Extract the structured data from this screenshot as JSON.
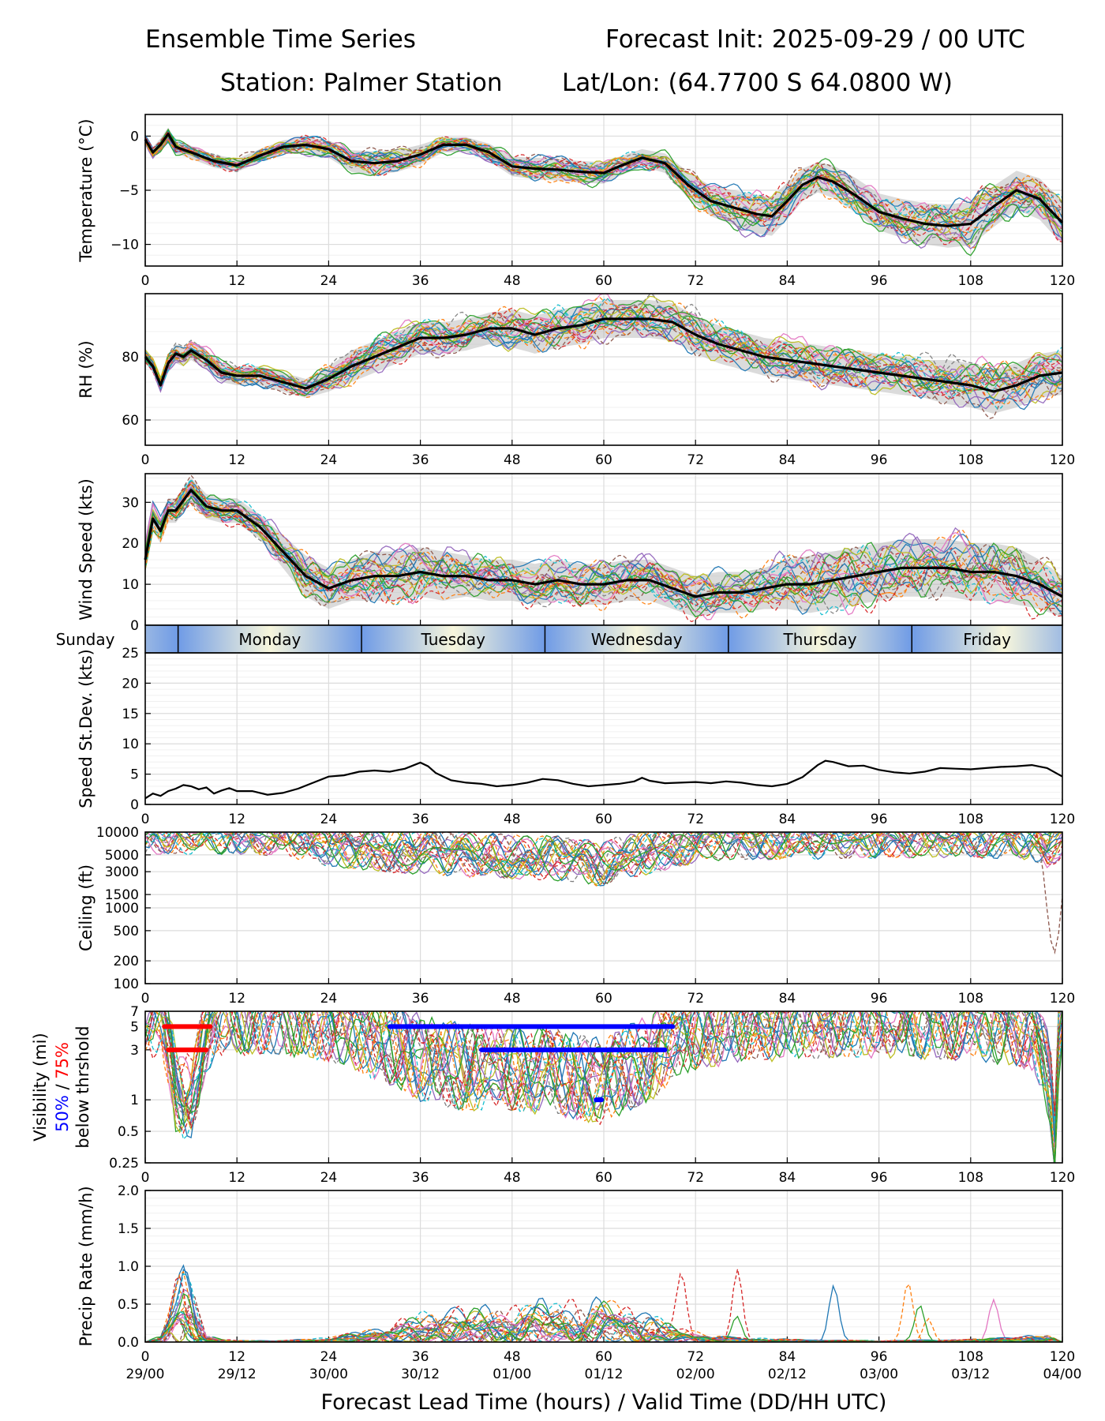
{
  "header": {
    "title_left": "Ensemble Time Series",
    "title_right": "Forecast Init: 2025-09-29 / 00 UTC",
    "station": "Station: Palmer Station",
    "latlon": "Lat/Lon: (64.7700 S 64.0800 W)"
  },
  "xaxis": {
    "ticks": [
      0,
      12,
      24,
      36,
      48,
      60,
      72,
      84,
      96,
      108,
      120
    ],
    "valid_times": [
      "29/00",
      "29/12",
      "30/00",
      "30/12",
      "01/00",
      "01/12",
      "02/00",
      "02/12",
      "03/00",
      "03/12",
      "04/00"
    ],
    "label": "Forecast Lead Time (hours) / Valid Time (DD/HH UTC)"
  },
  "day_bar": {
    "days": [
      {
        "name": "Sunday",
        "start": -24,
        "end": 4.3
      },
      {
        "name": "Monday",
        "start": 4.3,
        "end": 28.3
      },
      {
        "name": "Tuesday",
        "start": 28.3,
        "end": 52.3
      },
      {
        "name": "Wednesday",
        "start": 52.3,
        "end": 76.3
      },
      {
        "name": "Thursday",
        "start": 76.3,
        "end": 100.3
      },
      {
        "name": "Friday",
        "start": 100.3,
        "end": 124.3
      }
    ],
    "color_edge": "#6f9be6",
    "color_mid": "#f7f6dc"
  },
  "chart_data": [
    {
      "id": "temperature",
      "type": "line",
      "ylabel": "Temperature (°C)",
      "ylim": [
        -12,
        2
      ],
      "yticks": [
        0,
        -5,
        -10
      ],
      "x": [
        0,
        1,
        2,
        3,
        4,
        6,
        9,
        12,
        15,
        18,
        21,
        24,
        27,
        30,
        33,
        36,
        39,
        42,
        45,
        48,
        51,
        54,
        57,
        60,
        62,
        65,
        68,
        71,
        74,
        77,
        80,
        82,
        84,
        86,
        88,
        90,
        93,
        96,
        99,
        102,
        105,
        108,
        111,
        114,
        117,
        120
      ],
      "mean": [
        -0.3,
        -1.5,
        -0.8,
        0.2,
        -1.0,
        -1.5,
        -2.3,
        -2.7,
        -1.8,
        -1.0,
        -0.8,
        -1.2,
        -2.3,
        -2.5,
        -2.3,
        -1.7,
        -0.8,
        -0.8,
        -1.5,
        -2.8,
        -3.0,
        -3.1,
        -3.3,
        -3.4,
        -2.8,
        -2.0,
        -2.5,
        -4.5,
        -6.0,
        -6.6,
        -7.2,
        -7.4,
        -6.0,
        -4.5,
        -3.8,
        -4.2,
        -5.5,
        -7.0,
        -7.6,
        -8.1,
        -8.3,
        -8.1,
        -6.5,
        -5.0,
        -5.8,
        -8.0
      ],
      "spread": [
        0.3,
        0.5,
        0.6,
        0.6,
        0.6,
        0.6,
        0.6,
        0.6,
        0.6,
        0.6,
        0.7,
        0.8,
        1.0,
        1.1,
        1.0,
        0.9,
        0.7,
        0.7,
        0.8,
        0.9,
        1.0,
        1.0,
        1.0,
        1.0,
        0.9,
        0.8,
        0.9,
        1.2,
        1.4,
        1.6,
        1.8,
        1.8,
        1.7,
        1.5,
        1.4,
        1.5,
        1.6,
        1.7,
        1.8,
        1.9,
        2.0,
        2.0,
        1.9,
        1.8,
        1.9,
        2.0
      ],
      "members": 24
    },
    {
      "id": "rh",
      "type": "line",
      "ylabel": "RH (%)",
      "ylim": [
        52,
        100
      ],
      "yticks": [
        80,
        60
      ],
      "x": [
        0,
        1,
        2,
        3,
        4,
        5,
        6,
        8,
        10,
        12,
        15,
        18,
        21,
        24,
        27,
        30,
        33,
        36,
        39,
        42,
        45,
        48,
        51,
        54,
        57,
        60,
        63,
        66,
        69,
        72,
        75,
        78,
        81,
        84,
        87,
        90,
        93,
        96,
        99,
        102,
        105,
        108,
        111,
        114,
        117,
        120
      ],
      "mean": [
        80,
        77,
        71,
        78,
        81,
        80,
        82,
        79,
        75,
        74,
        74,
        72,
        70,
        73,
        77,
        80,
        83,
        86,
        86,
        87,
        89,
        89,
        87,
        89,
        90,
        92,
        92,
        92,
        91,
        87,
        84,
        82,
        80,
        79,
        78,
        77,
        76,
        75,
        74,
        73,
        72,
        71,
        69,
        71,
        74,
        75
      ],
      "spread": [
        2,
        2,
        2,
        3,
        3,
        3,
        3,
        3,
        3,
        3,
        3,
        3,
        3,
        4,
        5,
        5,
        5,
        5,
        5,
        5,
        5,
        6,
        6,
        6,
        6,
        6,
        6,
        6,
        6,
        6,
        6,
        6,
        6,
        6,
        6,
        6,
        6,
        6,
        6,
        6,
        7,
        7,
        7,
        7,
        7,
        7
      ],
      "members": 24
    },
    {
      "id": "wind",
      "type": "line",
      "ylabel": "Wind Speed (kts)",
      "ylim": [
        0,
        37
      ],
      "yticks": [
        0,
        10,
        20,
        30
      ],
      "x": [
        0,
        1,
        2,
        3,
        4,
        6,
        8,
        10,
        12,
        15,
        18,
        21,
        24,
        27,
        30,
        33,
        36,
        39,
        42,
        45,
        48,
        51,
        54,
        57,
        60,
        63,
        66,
        69,
        72,
        75,
        78,
        81,
        84,
        87,
        90,
        93,
        96,
        99,
        102,
        105,
        108,
        111,
        114,
        117,
        120
      ],
      "mean": [
        16,
        26,
        23,
        28,
        28,
        33,
        29,
        28,
        28,
        24,
        18,
        12,
        9,
        11,
        12,
        12,
        13,
        12,
        12,
        11,
        11,
        10,
        11,
        10,
        10,
        11,
        11,
        9,
        7,
        8,
        8,
        9,
        10,
        10,
        11,
        12,
        13,
        14,
        14,
        14,
        13,
        13,
        12,
        10,
        7
      ],
      "spread": [
        3,
        3,
        3,
        3,
        3,
        3,
        3,
        3,
        3,
        3,
        4,
        5,
        5,
        5,
        6,
        6,
        6,
        6,
        5,
        5,
        5,
        5,
        5,
        5,
        5,
        5,
        5,
        5,
        5,
        5,
        5,
        5,
        6,
        7,
        7,
        7,
        7,
        7,
        7,
        7,
        7,
        7,
        7,
        6,
        5
      ],
      "members": 24
    },
    {
      "id": "wind_sd",
      "type": "line",
      "ylabel": "Speed St.Dev. (kts)",
      "ylim": [
        0,
        25
      ],
      "yticks": [
        0,
        5,
        10,
        15,
        20,
        25
      ],
      "x": [
        0,
        1,
        2,
        3,
        4,
        5,
        6,
        7,
        8,
        9,
        10,
        11,
        12,
        14,
        16,
        18,
        20,
        22,
        24,
        26,
        28,
        30,
        32,
        34,
        35,
        36,
        37,
        38,
        40,
        42,
        44,
        46,
        48,
        50,
        52,
        54,
        56,
        58,
        60,
        62,
        64,
        65,
        66,
        68,
        70,
        72,
        74,
        76,
        78,
        80,
        82,
        84,
        86,
        88,
        89,
        90,
        92,
        94,
        96,
        98,
        100,
        102,
        104,
        106,
        108,
        110,
        112,
        114,
        116,
        118,
        120
      ],
      "values": [
        1.0,
        1.8,
        1.4,
        2.2,
        2.6,
        3.2,
        3.0,
        2.5,
        2.8,
        1.8,
        2.3,
        2.7,
        2.2,
        2.2,
        1.6,
        1.9,
        2.6,
        3.6,
        4.6,
        4.8,
        5.4,
        5.6,
        5.4,
        5.9,
        6.4,
        6.9,
        6.3,
        5.2,
        4.0,
        3.6,
        3.4,
        3.0,
        3.2,
        3.6,
        4.2,
        4.0,
        3.4,
        3.0,
        3.2,
        3.4,
        3.8,
        4.4,
        3.9,
        3.5,
        3.6,
        3.7,
        3.5,
        3.8,
        3.6,
        3.2,
        3.0,
        3.4,
        4.5,
        6.5,
        7.2,
        7.0,
        6.3,
        6.4,
        5.7,
        5.3,
        5.1,
        5.4,
        6.0,
        5.9,
        5.8,
        6.0,
        6.2,
        6.3,
        6.5,
        6.0,
        4.6
      ]
    },
    {
      "id": "ceiling",
      "type": "line",
      "ylabel": "Ceiling (ft)",
      "yscale": "log",
      "ylim": [
        100,
        10000
      ],
      "yticks": [
        100,
        200,
        500,
        1000,
        1500,
        3000,
        5000,
        10000
      ],
      "x": [
        0,
        6,
        12,
        18,
        24,
        30,
        36,
        42,
        48,
        54,
        58,
        60,
        62,
        66,
        70,
        76,
        84,
        96,
        108,
        116,
        118,
        120
      ],
      "mean": [
        10000,
        10000,
        10000,
        9500,
        7000,
        6000,
        5500,
        5000,
        4800,
        4500,
        4000,
        3800,
        4500,
        5500,
        7000,
        8500,
        8500,
        9000,
        9000,
        8500,
        6000,
        9000
      ],
      "members": 24
    },
    {
      "id": "visibility",
      "type": "line",
      "ylabel_lines": [
        "Visibility (mi)",
        "50%",
        "/",
        "75%",
        "below thrshold"
      ],
      "yscale": "log",
      "ylim": [
        0.25,
        7
      ],
      "yticks": [
        0.25,
        0.5,
        1,
        3,
        5,
        7
      ],
      "x": [
        0,
        2,
        3,
        4,
        5,
        6,
        7,
        8,
        9,
        10,
        12,
        18,
        24,
        30,
        36,
        42,
        48,
        54,
        60,
        66,
        70,
        72,
        80,
        90,
        100,
        110,
        116,
        118,
        119,
        120
      ],
      "mean": [
        7,
        6,
        3,
        1.3,
        1.0,
        1.1,
        2.0,
        4,
        6,
        7,
        7,
        7,
        6,
        4,
        2.5,
        2.0,
        2.0,
        1.8,
        1.5,
        2.5,
        4,
        5,
        6,
        6.5,
        6.5,
        6,
        5,
        2,
        0.3,
        6
      ],
      "members": 24,
      "threshold_bars": [
        {
          "level": 5,
          "color": "#ff0000",
          "start": 2.5,
          "end": 8.5
        },
        {
          "level": 3,
          "color": "#ff0000",
          "start": 3,
          "end": 8
        },
        {
          "level": 5,
          "color": "#0000ff",
          "start": 32,
          "end": 69
        },
        {
          "level": 3,
          "color": "#0000ff",
          "start": 44,
          "end": 68
        },
        {
          "level": 1,
          "color": "#0000ff",
          "start": 59,
          "end": 59.7
        }
      ]
    },
    {
      "id": "precip",
      "type": "line",
      "ylabel": "Precip Rate (mm/h)",
      "ylim": [
        0,
        2
      ],
      "yticks": [
        0.0,
        0.5,
        1.0,
        1.5,
        2.0
      ],
      "x": [
        0,
        2,
        3,
        4,
        5,
        6,
        7,
        8,
        10,
        12,
        18,
        24,
        30,
        36,
        42,
        48,
        54,
        60,
        66,
        70,
        74,
        78,
        84,
        96,
        108,
        118,
        120
      ],
      "mean": [
        0.0,
        0.05,
        0.2,
        0.4,
        0.55,
        0.5,
        0.25,
        0.05,
        0.02,
        0.01,
        0.01,
        0.03,
        0.1,
        0.2,
        0.25,
        0.25,
        0.3,
        0.3,
        0.2,
        0.1,
        0.05,
        0.03,
        0.02,
        0.01,
        0.02,
        0.05,
        0.0
      ],
      "members": 24
    }
  ],
  "member_colors": [
    "#1f77b4",
    "#ff7f0e",
    "#2ca02c",
    "#d62728",
    "#9467bd",
    "#8c564b",
    "#e377c2",
    "#7f7f7f",
    "#bcbd22",
    "#17becf"
  ]
}
